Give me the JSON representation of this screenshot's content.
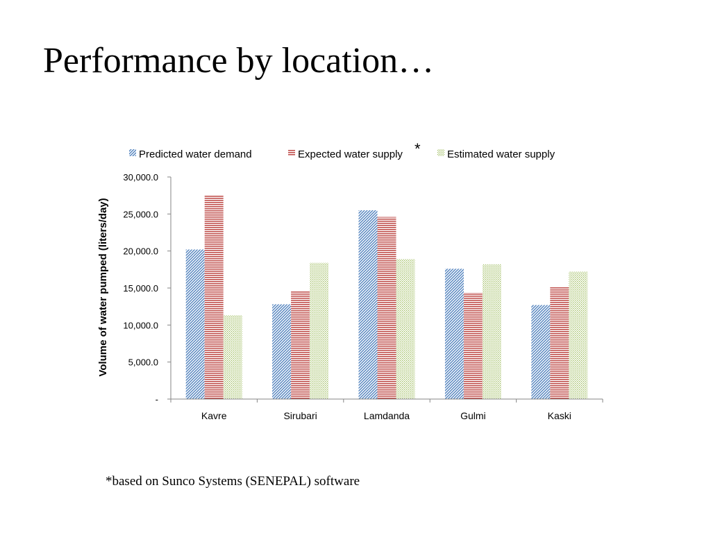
{
  "slide": {
    "title": "Performance by location…",
    "footnote": "*based on Sunco Systems (SENEPAL) software"
  },
  "chart_data": {
    "type": "bar",
    "title": "",
    "xlabel": "",
    "ylabel": "Volume of water pumped (liters/day)",
    "categories": [
      "Kavre",
      "Sirubari",
      "Lamdanda",
      "Gulmi",
      "Kaski"
    ],
    "series": [
      {
        "name": "Predicted water demand",
        "values": [
          20200,
          12800,
          25500,
          17600,
          12700
        ],
        "color": "#4f81bd",
        "pattern": "diagonal"
      },
      {
        "name": "Expected water supply",
        "values": [
          27500,
          14600,
          24600,
          14400,
          15200
        ],
        "color": "#c0504d",
        "pattern": "horizontal"
      },
      {
        "name": "Estimated water supply",
        "values": [
          11300,
          18400,
          18900,
          18200,
          17200
        ],
        "color": "#9bbb59",
        "pattern": "dotted"
      }
    ],
    "legend_marker": "*",
    "ylim": [
      0,
      30000
    ],
    "yticks": [
      0,
      5000,
      10000,
      15000,
      20000,
      25000,
      30000
    ],
    "ytick_labels": [
      "-",
      "5,000.0",
      "10,000.0",
      "15,000.0",
      "20,000.0",
      "25,000.0",
      "30,000.0"
    ],
    "legend_position": "top",
    "grid": false
  }
}
